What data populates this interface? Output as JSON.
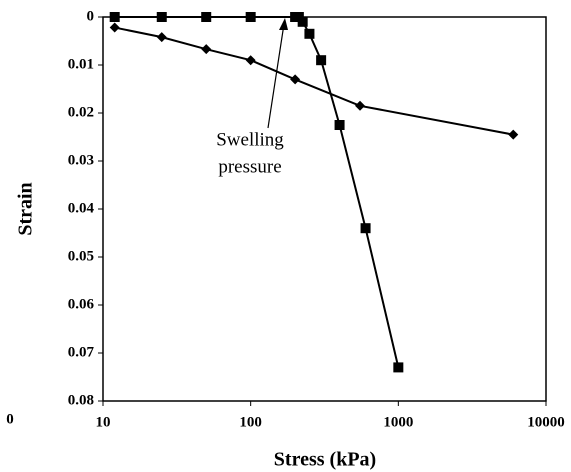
{
  "chart_data": {
    "type": "line",
    "xlabel": "Stress (kPa)",
    "ylabel": "Strain",
    "xscale": "log",
    "xlim": [
      10,
      10000
    ],
    "xticks": [
      10,
      100,
      1000,
      10000
    ],
    "ylim": [
      0,
      0.08
    ],
    "yreversed": true,
    "yticks": [
      0,
      0.01,
      0.02,
      0.03,
      0.04,
      0.05,
      0.06,
      0.07,
      0.08
    ],
    "series": [
      {
        "marker": "square",
        "color": "#000000",
        "x": [
          12,
          25,
          50,
          100,
          200,
          212,
          225,
          250,
          300,
          400,
          600,
          1000
        ],
        "values": [
          0,
          0,
          0,
          0,
          0,
          0,
          0.001,
          0.0035,
          0.009,
          0.0225,
          0.044,
          0.073
        ]
      },
      {
        "marker": "diamond",
        "color": "#000000",
        "x": [
          12,
          25,
          50,
          100,
          200,
          550,
          6000
        ],
        "values": [
          0.0022,
          0.0042,
          0.0067,
          0.009,
          0.013,
          0.0185,
          0.0245
        ]
      }
    ],
    "annotation": [
      "Swelling",
      "pressure"
    ],
    "stray_label": "0"
  }
}
